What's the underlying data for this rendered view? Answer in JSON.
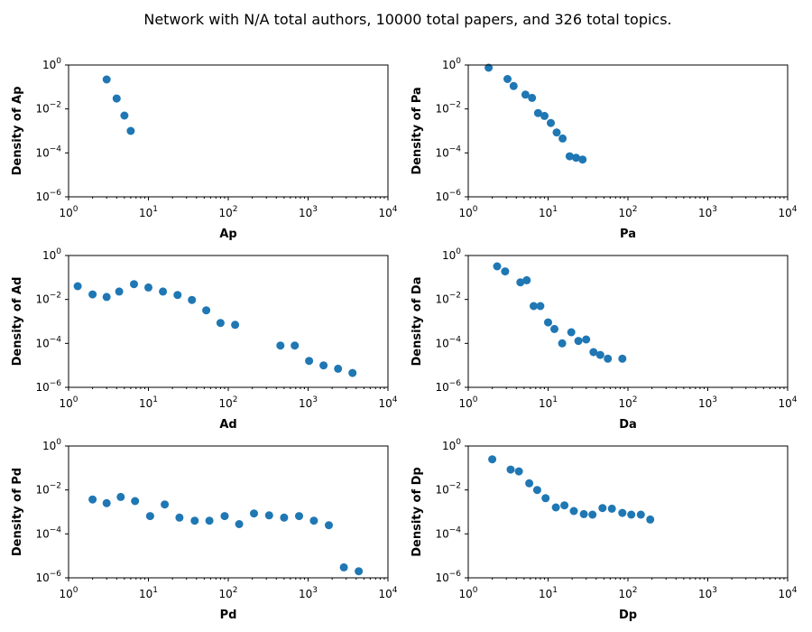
{
  "figure": {
    "title": "Network with N/A total authors, 10000 total papers, and 326 total topics."
  },
  "chart_data": [
    {
      "type": "scatter",
      "xscale": "log",
      "yscale": "log",
      "xlim": [
        1,
        10000
      ],
      "ylim": [
        1e-06,
        1
      ],
      "xlabel": "Ap",
      "ylabel": "Density of Ap",
      "x": [
        3,
        4,
        5,
        6
      ],
      "y": [
        0.22,
        0.03,
        0.005,
        0.001
      ]
    },
    {
      "type": "scatter",
      "xscale": "log",
      "yscale": "log",
      "xlim": [
        1,
        10000
      ],
      "ylim": [
        1e-06,
        1
      ],
      "xlabel": "Pa",
      "ylabel": "Density of Pa",
      "x": [
        1.8,
        3.1,
        3.7,
        5.2,
        6.3,
        7.5,
        9.0,
        10.8,
        12.8,
        15.2,
        18.6,
        22.4,
        27.0
      ],
      "y": [
        0.75,
        0.23,
        0.11,
        0.045,
        0.032,
        0.0065,
        0.0048,
        0.0023,
        0.00085,
        0.00045,
        7e-05,
        6e-05,
        5e-05
      ]
    },
    {
      "type": "scatter",
      "xscale": "log",
      "yscale": "log",
      "xlim": [
        1,
        10000
      ],
      "ylim": [
        1e-06,
        1
      ],
      "xlabel": "Ad",
      "ylabel": "Density of Ad",
      "x": [
        1.3,
        2.0,
        3.0,
        4.3,
        6.6,
        10.0,
        15.2,
        23.2,
        35.0,
        53.0,
        80.0,
        122.0,
        450.0,
        680.0,
        1030.0,
        1560.0,
        2370.0,
        3600.0
      ],
      "y": [
        0.04,
        0.017,
        0.013,
        0.023,
        0.05,
        0.035,
        0.023,
        0.016,
        0.0095,
        0.0032,
        0.00085,
        0.0007,
        8e-05,
        8e-05,
        1.6e-05,
        1e-05,
        7e-06,
        4.5e-06
      ]
    },
    {
      "type": "scatter",
      "xscale": "log",
      "yscale": "log",
      "xlim": [
        1,
        10000
      ],
      "ylim": [
        1e-06,
        1
      ],
      "xlabel": "Da",
      "ylabel": "Density of Da",
      "x": [
        2.3,
        2.9,
        4.5,
        5.4,
        6.6,
        8.0,
        10.0,
        12.0,
        15.0,
        19.5,
        24.0,
        30.0,
        37.0,
        45.0,
        56.0,
        85.0
      ],
      "y": [
        0.32,
        0.19,
        0.06,
        0.075,
        0.005,
        0.005,
        0.0009,
        0.00045,
        0.0001,
        0.00032,
        0.00013,
        0.00015,
        4e-05,
        3e-05,
        2e-05,
        2e-05
      ]
    },
    {
      "type": "scatter",
      "xscale": "log",
      "yscale": "log",
      "xlim": [
        1,
        10000
      ],
      "ylim": [
        1e-06,
        1
      ],
      "xlabel": "Pd",
      "ylabel": "Density of Pd",
      "x": [
        2.0,
        3.0,
        4.5,
        6.8,
        10.5,
        16.0,
        24.5,
        38.0,
        58.0,
        90.0,
        137.0,
        210.0,
        325.0,
        500.0,
        770.0,
        1180.0,
        1820.0,
        2800.0,
        4300.0
      ],
      "y": [
        0.0037,
        0.0025,
        0.0048,
        0.0031,
        0.00065,
        0.0022,
        0.00055,
        0.0004,
        0.0004,
        0.00065,
        0.00028,
        0.00085,
        0.0007,
        0.00055,
        0.00065,
        0.0004,
        0.00025,
        3e-06,
        2e-06
      ]
    },
    {
      "type": "scatter",
      "xscale": "log",
      "yscale": "log",
      "xlim": [
        1,
        10000
      ],
      "ylim": [
        1e-06,
        1
      ],
      "xlabel": "Dp",
      "ylabel": "Density of Dp",
      "x": [
        2.0,
        3.4,
        4.3,
        5.8,
        7.3,
        9.3,
        12.5,
        16.0,
        21.0,
        28.0,
        36.0,
        48.0,
        63.0,
        85.0,
        110.0,
        145.0,
        190.0
      ],
      "y": [
        0.25,
        0.085,
        0.07,
        0.02,
        0.01,
        0.0042,
        0.0016,
        0.002,
        0.0011,
        0.0008,
        0.00075,
        0.0015,
        0.0014,
        0.0009,
        0.00075,
        0.00075,
        0.00045
      ]
    }
  ]
}
